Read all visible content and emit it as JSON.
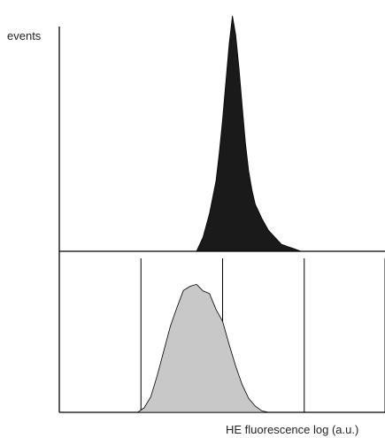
{
  "chart_data": [
    {
      "type": "area",
      "panel": "top",
      "ylabel": "events",
      "xlabel": "",
      "fill": "#1a1a1a",
      "xlim": [
        0,
        100
      ],
      "ylim": [
        0,
        100
      ],
      "x": [
        42,
        44,
        46,
        48,
        49,
        50,
        51,
        52,
        53,
        54,
        55,
        56,
        57,
        58,
        59,
        60,
        62,
        64,
        66,
        68,
        70,
        72,
        74
      ],
      "values": [
        0,
        6,
        16,
        30,
        42,
        56,
        72,
        88,
        100,
        92,
        78,
        62,
        46,
        34,
        26,
        20,
        14,
        9,
        6,
        3,
        2,
        1,
        0
      ]
    },
    {
      "type": "area",
      "panel": "bottom",
      "xlabel": "HE fluorescence log (a.u.)",
      "fill": "#c8c8c8",
      "xlim": [
        0,
        100
      ],
      "ylim": [
        0,
        100
      ],
      "x": [
        24,
        26,
        28,
        30,
        32,
        34,
        36,
        38,
        40,
        42,
        44,
        46,
        48,
        50,
        52,
        54,
        56,
        58,
        60,
        62,
        64
      ],
      "values": [
        0,
        3,
        10,
        24,
        40,
        56,
        68,
        78,
        83,
        82,
        80,
        76,
        68,
        58,
        44,
        30,
        18,
        9,
        4,
        1,
        0
      ],
      "vertical_markers": [
        25,
        50,
        75,
        100
      ]
    }
  ]
}
